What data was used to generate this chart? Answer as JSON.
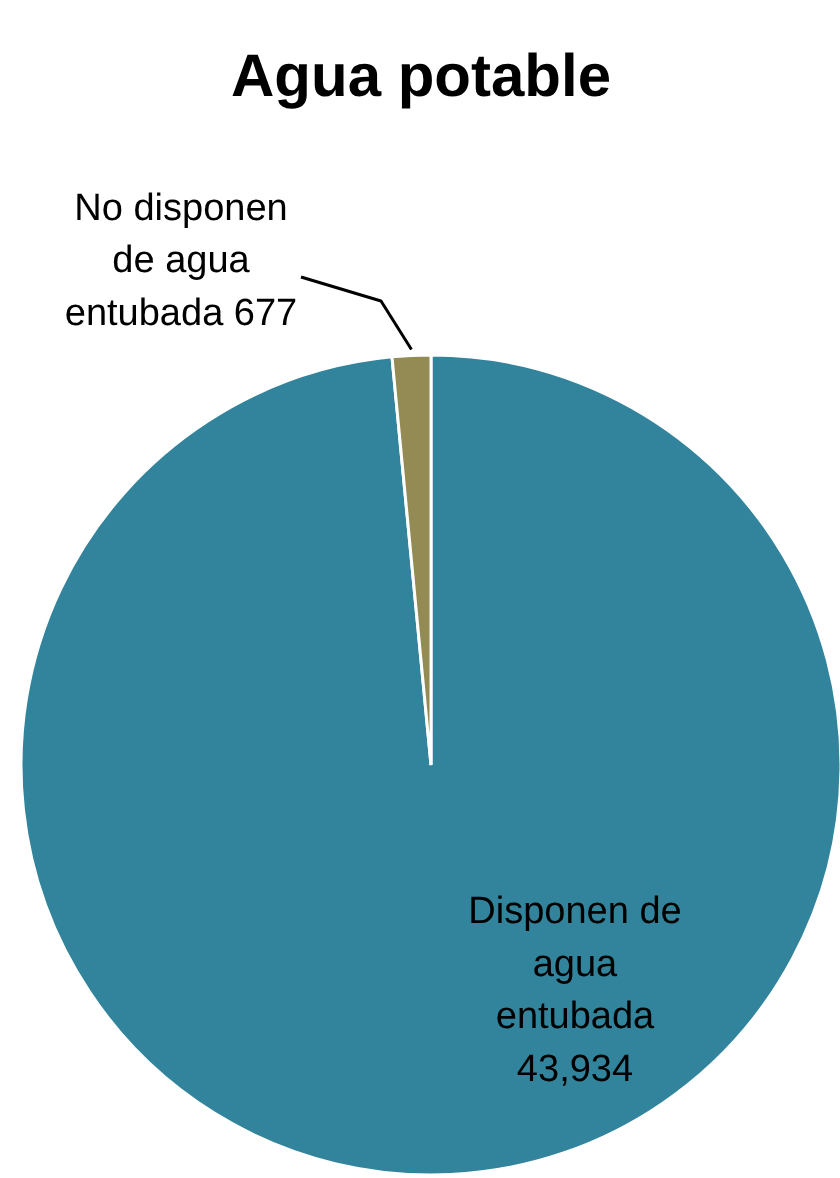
{
  "chart_data": {
    "type": "pie",
    "title": "Agua potable",
    "categories": [
      "Disponen de agua entubada",
      "No disponen de agua entubada"
    ],
    "values": [
      43934,
      677
    ],
    "value_labels": [
      "43,934",
      "677"
    ],
    "colors": [
      "#31849b",
      "#948a54"
    ]
  }
}
